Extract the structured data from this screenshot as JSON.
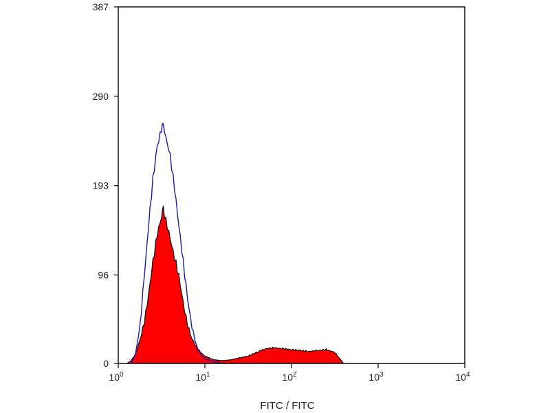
{
  "chart_data": {
    "type": "area",
    "title": "",
    "xlabel": "FITC / FITC",
    "ylabel": "",
    "x_scale": "log",
    "xlim": [
      1,
      10000
    ],
    "ylim": [
      0,
      387
    ],
    "grid": false,
    "legend": "none",
    "x_ticks": [
      {
        "base": "10",
        "exp": "0"
      },
      {
        "base": "10",
        "exp": "1"
      },
      {
        "base": "10",
        "exp": "2"
      },
      {
        "base": "10",
        "exp": "3"
      },
      {
        "base": "10",
        "exp": "4"
      }
    ],
    "y_ticks": [
      "0",
      "96",
      "193",
      "290",
      "387"
    ],
    "series": [
      {
        "style": "filled",
        "fill": "#ff0000",
        "stroke": "#000000",
        "x": [
          1.26,
          1.41,
          1.58,
          1.78,
          2.0,
          2.24,
          2.51,
          2.82,
          3.16,
          3.31,
          3.55,
          3.98,
          4.47,
          5.01,
          5.62,
          6.31,
          7.08,
          7.94,
          8.91,
          10,
          12.6,
          15.8,
          20,
          25.1,
          31.6,
          39.8,
          50.1,
          63.1,
          79.4,
          100,
          126,
          158,
          200,
          251,
          316,
          355,
          398
        ],
        "y": [
          0,
          3,
          10,
          25,
          45,
          75,
          110,
          140,
          160,
          167,
          155,
          135,
          115,
          95,
          65,
          42,
          27,
          18,
          12,
          8,
          4,
          3,
          4,
          6,
          8,
          12,
          16,
          17,
          16,
          15,
          14,
          13,
          14,
          15,
          12,
          6,
          0
        ]
      },
      {
        "style": "outline",
        "stroke": "#1a1aa8",
        "x": [
          1.41,
          1.58,
          1.78,
          2.0,
          2.24,
          2.51,
          2.82,
          3.16,
          3.31,
          3.55,
          3.98,
          4.47,
          5.01,
          5.62,
          6.31,
          7.08,
          7.94,
          8.91,
          10,
          12.6,
          15.8
        ],
        "y": [
          0,
          10,
          40,
          95,
          150,
          200,
          235,
          255,
          258,
          245,
          225,
          190,
          150,
          110,
          70,
          40,
          20,
          10,
          5,
          2,
          0
        ]
      }
    ]
  }
}
